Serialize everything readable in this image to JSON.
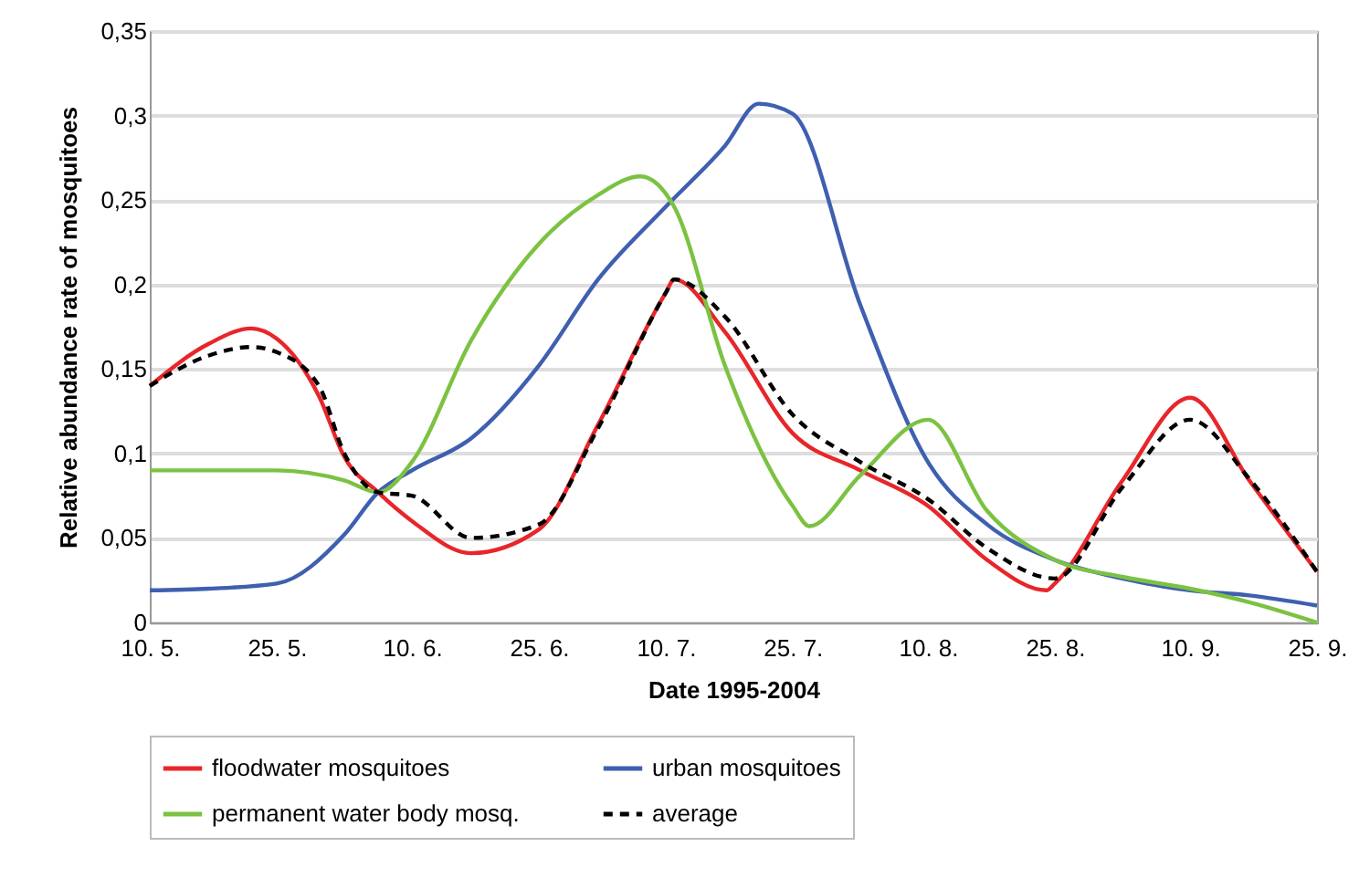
{
  "chart_data": {
    "type": "line",
    "xlabel": "Date 1995-2004",
    "ylabel": "Relative abundance rate of mosquitoes",
    "xlim": [
      "--05-10",
      "--09-25"
    ],
    "xticks": [
      {
        "value": "--05-10",
        "label": "10. 5."
      },
      {
        "value": "--05-25",
        "label": "25. 5."
      },
      {
        "value": "--06-10",
        "label": "10. 6."
      },
      {
        "value": "--06-25",
        "label": "25. 6."
      },
      {
        "value": "--07-10",
        "label": "10. 7."
      },
      {
        "value": "--07-25",
        "label": "25. 7."
      },
      {
        "value": "--08-10",
        "label": "10. 8."
      },
      {
        "value": "--08-25",
        "label": "25. 8."
      },
      {
        "value": "--09-10",
        "label": "10. 9."
      },
      {
        "value": "--09-25",
        "label": "25. 9."
      }
    ],
    "ylim": [
      0,
      0.35
    ],
    "yticks": [
      0,
      {
        "value": 0.05,
        "label": "0,05"
      },
      {
        "value": 0.1,
        "label": "0,1"
      },
      {
        "value": 0.15,
        "label": "0,15"
      },
      {
        "value": 0.2,
        "label": "0,2"
      },
      {
        "value": 0.25,
        "label": "0,25"
      },
      {
        "value": 0.3,
        "label": "0,3"
      },
      {
        "value": 0.35,
        "label": "0,35"
      }
    ],
    "grid": "y",
    "legend": "bottom",
    "marker": "none",
    "series": [
      {
        "name": "floodwater mosquitoes",
        "color": "#e8262a",
        "line_style": "solid",
        "x": [
          "--05-10",
          "--05-17",
          "--05-22",
          "--05-25",
          "--05-30",
          "--06-02",
          "--06-06",
          "--06-10",
          "--06-17",
          "--06-25",
          "--07-02",
          "--07-10",
          "--07-11",
          "--07-17",
          "--07-25",
          "--08-02",
          "--08-10",
          "--08-17",
          "--08-24",
          "--08-25",
          "--09-02",
          "--09-10",
          "--09-17",
          "--09-25"
        ],
        "values": [
          0.14,
          0.165,
          0.174,
          0.168,
          0.134,
          0.098,
          0.077,
          0.06,
          0.041,
          0.055,
          0.117,
          0.195,
          0.203,
          0.172,
          0.112,
          0.09,
          0.069,
          0.037,
          0.019,
          0.023,
          0.084,
          0.133,
          0.084,
          0.03
        ]
      },
      {
        "name": "urban mosquitoes",
        "color": "#3f5fb0",
        "line_style": "solid",
        "x": [
          "--05-10",
          "--05-17",
          "--05-25",
          "--06-02",
          "--06-06",
          "--06-10",
          "--06-17",
          "--06-25",
          "--07-02",
          "--07-10",
          "--07-17",
          "--07-21",
          "--07-25",
          "--08-02",
          "--08-10",
          "--08-17",
          "--08-25",
          "--09-02",
          "--09-10",
          "--09-17",
          "--09-25"
        ],
        "values": [
          0.019,
          0.02,
          0.023,
          0.052,
          0.077,
          0.09,
          0.109,
          0.152,
          0.203,
          0.246,
          0.282,
          0.307,
          0.301,
          0.188,
          0.095,
          0.058,
          0.037,
          0.026,
          0.019,
          0.016,
          0.01
        ]
      },
      {
        "name": "permanent water body mosq.",
        "color": "#7cc242",
        "line_style": "solid",
        "x": [
          "--05-10",
          "--05-17",
          "--05-25",
          "--06-02",
          "--06-06",
          "--06-10",
          "--06-17",
          "--06-25",
          "--07-02",
          "--07-07",
          "--07-11",
          "--07-17",
          "--07-25",
          "--07-27",
          "--08-02",
          "--08-10",
          "--08-17",
          "--08-25",
          "--09-02",
          "--09-10",
          "--09-17",
          "--09-25"
        ],
        "values": [
          0.09,
          0.09,
          0.09,
          0.084,
          0.077,
          0.095,
          0.167,
          0.224,
          0.253,
          0.264,
          0.246,
          0.152,
          0.069,
          0.057,
          0.087,
          0.12,
          0.066,
          0.037,
          0.027,
          0.02,
          0.012,
          0
        ]
      },
      {
        "name": "average",
        "color": "#000000",
        "line_style": "dashed",
        "x": [
          "--05-10",
          "--05-17",
          "--05-22",
          "--05-25",
          "--05-30",
          "--06-02",
          "--06-06",
          "--06-10",
          "--06-17",
          "--06-25",
          "--07-02",
          "--07-10",
          "--07-11",
          "--07-17",
          "--07-25",
          "--08-02",
          "--08-10",
          "--08-17",
          "--08-25",
          "--09-02",
          "--09-10",
          "--09-17",
          "--09-25"
        ],
        "values": [
          0.14,
          0.158,
          0.163,
          0.16,
          0.14,
          0.1,
          0.077,
          0.075,
          0.05,
          0.058,
          0.115,
          0.195,
          0.203,
          0.181,
          0.123,
          0.095,
          0.073,
          0.044,
          0.026,
          0.08,
          0.12,
          0.085,
          0.03
        ]
      }
    ]
  }
}
